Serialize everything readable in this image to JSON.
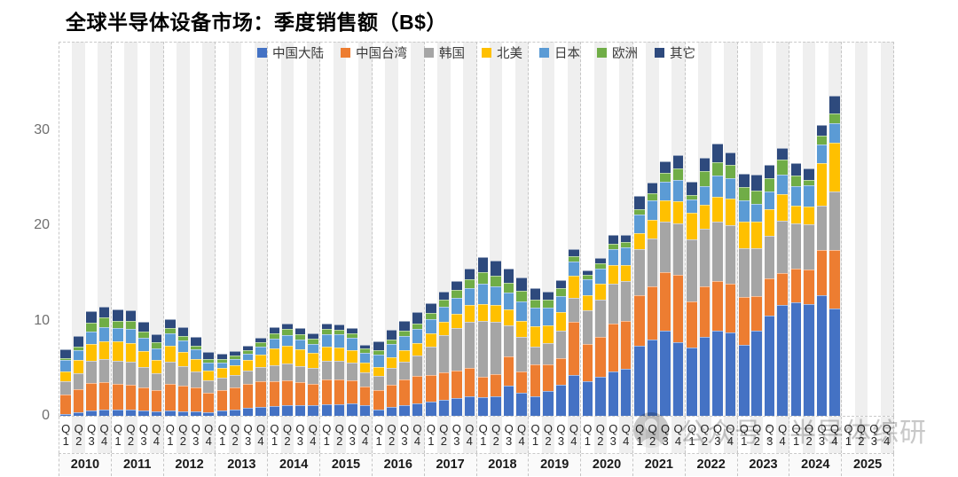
{
  "title": "全球半导体设备市场：季度销售额（B$）",
  "watermark": {
    "text": "公众号：半导体综研",
    "icon": "user-avatar-icon"
  },
  "y_axis": {
    "ticks": [
      0,
      10,
      20,
      30
    ]
  },
  "x_axis": {
    "quarter_prefix": "Q",
    "quarters": [
      "1",
      "2",
      "3",
      "4"
    ],
    "years": [
      "2010",
      "2011",
      "2012",
      "2013",
      "2014",
      "2015",
      "2016",
      "2017",
      "2018",
      "2019",
      "2020",
      "2021",
      "2022",
      "2023",
      "2024",
      "2025"
    ]
  },
  "style": {
    "stripe_color": "#EFEFEF",
    "dash_color": "#C6C6C6",
    "background": "#FFFFFF"
  },
  "chart_data": {
    "type": "bar",
    "stacked": true,
    "title": "全球半导体设备市场：季度销售额（B$）",
    "xlabel": "",
    "ylabel": "B$",
    "ylim": [
      0,
      39.3
    ],
    "y_ticks": [
      0,
      10,
      20,
      30
    ],
    "legend_position": "top-center",
    "grid": "dashed year separators, alternating quarter bands",
    "categories_note": "quarters 2010Q1-2025Q4; 2025 has no data (null)",
    "years": [
      "2010",
      "2011",
      "2012",
      "2013",
      "2014",
      "2015",
      "2016",
      "2017",
      "2018",
      "2019",
      "2020",
      "2021",
      "2022",
      "2023",
      "2024",
      "2025"
    ],
    "series": [
      {
        "id": "cn",
        "name": "中国大陆",
        "color": "#4472C4",
        "values": [
          0.2,
          0.35,
          0.6,
          0.65,
          0.7,
          0.7,
          0.6,
          0.5,
          0.55,
          0.5,
          0.45,
          0.35,
          0.55,
          0.65,
          0.85,
          0.95,
          1.0,
          1.1,
          1.1,
          1.1,
          1.2,
          1.25,
          1.3,
          1.1,
          0.7,
          0.9,
          1.1,
          1.3,
          1.5,
          1.7,
          1.9,
          2.1,
          2.0,
          2.1,
          3.2,
          2.4,
          2.1,
          2.6,
          3.3,
          4.3,
          3.6,
          4.1,
          4.7,
          4.9,
          7.4,
          8.0,
          8.9,
          7.7,
          7.2,
          8.3,
          8.9,
          8.8,
          7.5,
          8.9,
          10.5,
          11.6,
          11.9,
          11.7,
          12.7,
          11.3,
          null,
          null,
          null,
          null
        ]
      },
      {
        "id": "tw",
        "name": "中国台湾",
        "color": "#ED7D31",
        "values": [
          2.0,
          2.4,
          2.9,
          2.9,
          2.7,
          2.6,
          2.4,
          2.2,
          2.8,
          2.7,
          2.5,
          2.1,
          2.2,
          2.3,
          2.5,
          2.7,
          2.6,
          2.6,
          2.4,
          2.3,
          2.6,
          2.55,
          2.4,
          2.0,
          2.0,
          2.4,
          2.7,
          2.9,
          2.8,
          2.9,
          2.9,
          2.9,
          2.1,
          2.3,
          3.0,
          2.3,
          3.3,
          2.8,
          2.8,
          5.6,
          3.9,
          4.2,
          5.0,
          5.1,
          5.3,
          5.6,
          6.2,
          7.1,
          4.8,
          5.3,
          5.3,
          5.1,
          5.0,
          3.7,
          3.9,
          3.4,
          3.6,
          3.7,
          4.7,
          6.1,
          null,
          null,
          null,
          null
        ]
      },
      {
        "id": "kr",
        "name": "韩国",
        "color": "#A5A5A5",
        "values": [
          1.4,
          1.75,
          2.3,
          2.4,
          2.4,
          2.35,
          2.1,
          1.8,
          2.3,
          2.0,
          1.7,
          1.3,
          1.25,
          1.3,
          1.4,
          1.5,
          1.7,
          1.8,
          1.7,
          1.6,
          2.0,
          2.0,
          1.9,
          1.5,
          1.5,
          1.7,
          1.9,
          2.1,
          3.0,
          3.9,
          4.4,
          4.9,
          5.9,
          5.5,
          3.3,
          3.6,
          1.9,
          2.2,
          2.8,
          2.5,
          3.6,
          3.9,
          4.2,
          4.2,
          4.8,
          5.0,
          5.3,
          5.4,
          6.5,
          6.1,
          6.2,
          6.1,
          5.1,
          5.0,
          4.5,
          5.5,
          4.7,
          4.7,
          4.7,
          6.2,
          null,
          null,
          null,
          null
        ]
      },
      {
        "id": "na",
        "name": "北美",
        "color": "#FFC000",
        "values": [
          1.1,
          1.4,
          1.8,
          1.9,
          2.0,
          2.0,
          1.7,
          1.4,
          1.7,
          1.5,
          1.3,
          1.0,
          1.0,
          1.05,
          1.1,
          1.3,
          1.8,
          1.9,
          1.8,
          1.6,
          1.5,
          1.4,
          1.25,
          0.95,
          0.95,
          1.1,
          1.2,
          1.3,
          1.4,
          1.4,
          1.5,
          1.8,
          1.7,
          1.7,
          1.7,
          1.7,
          2.1,
          1.9,
          2.0,
          2.3,
          1.6,
          1.7,
          1.9,
          1.6,
          1.7,
          2.0,
          2.2,
          2.3,
          2.8,
          2.5,
          2.6,
          2.8,
          2.8,
          2.8,
          2.8,
          2.8,
          1.9,
          1.9,
          4.4,
          5.1,
          null,
          null,
          null,
          null
        ]
      },
      {
        "id": "jp",
        "name": "日本",
        "color": "#5B9BD5",
        "values": [
          1.15,
          1.0,
          1.3,
          1.5,
          1.4,
          1.5,
          1.4,
          1.2,
          1.3,
          1.2,
          1.0,
          0.8,
          0.6,
          0.65,
          0.7,
          0.85,
          1.0,
          1.1,
          1.05,
          0.95,
          1.3,
          1.35,
          1.35,
          1.1,
          1.3,
          1.4,
          1.5,
          1.5,
          1.5,
          1.6,
          1.7,
          1.7,
          2.2,
          2.0,
          1.7,
          2.0,
          2.0,
          1.9,
          1.7,
          1.5,
          1.6,
          1.6,
          1.7,
          1.9,
          1.9,
          2.0,
          2.0,
          2.3,
          1.4,
          1.9,
          2.2,
          2.2,
          2.2,
          1.9,
          1.9,
          2.0,
          2.0,
          2.2,
          2.0,
          2.0,
          null,
          null,
          null,
          null
        ]
      },
      {
        "id": "eu",
        "name": "欧洲",
        "color": "#70AD47",
        "values": [
          0.2,
          0.4,
          0.9,
          1.0,
          0.8,
          0.85,
          0.7,
          0.6,
          0.55,
          0.5,
          0.45,
          0.45,
          0.35,
          0.35,
          0.4,
          0.45,
          0.6,
          0.6,
          0.55,
          0.55,
          0.5,
          0.5,
          0.45,
          0.4,
          0.45,
          0.5,
          0.55,
          0.6,
          0.6,
          0.7,
          0.85,
          1.0,
          1.15,
          1.1,
          1.1,
          1.1,
          0.8,
          0.8,
          0.8,
          0.55,
          0.5,
          0.5,
          0.6,
          0.6,
          0.6,
          0.8,
          0.9,
          1.2,
          0.5,
          1.6,
          1.4,
          1.4,
          1.4,
          1.4,
          1.4,
          1.6,
          1.1,
          0.6,
          0.9,
          1.1,
          null,
          null,
          null,
          null
        ]
      },
      {
        "id": "other",
        "name": "其它",
        "color": "#2E4A7D",
        "values": [
          0.95,
          1.1,
          1.2,
          1.15,
          1.2,
          1.1,
          1.0,
          0.9,
          0.9,
          0.9,
          0.9,
          0.7,
          0.55,
          0.5,
          0.45,
          0.45,
          0.6,
          0.6,
          0.6,
          0.6,
          0.6,
          0.55,
          0.55,
          0.45,
          0.9,
          1.0,
          1.05,
          1.2,
          1.0,
          0.8,
          0.95,
          1.1,
          1.65,
          1.6,
          1.5,
          1.4,
          1.2,
          0.85,
          0.85,
          0.8,
          0.5,
          0.6,
          0.9,
          0.7,
          1.4,
          1.1,
          1.2,
          1.4,
          1.4,
          1.4,
          2.0,
          1.3,
          1.4,
          1.6,
          1.4,
          1.2,
          1.3,
          1.2,
          1.1,
          1.8,
          null,
          null,
          null,
          null
        ]
      }
    ]
  }
}
